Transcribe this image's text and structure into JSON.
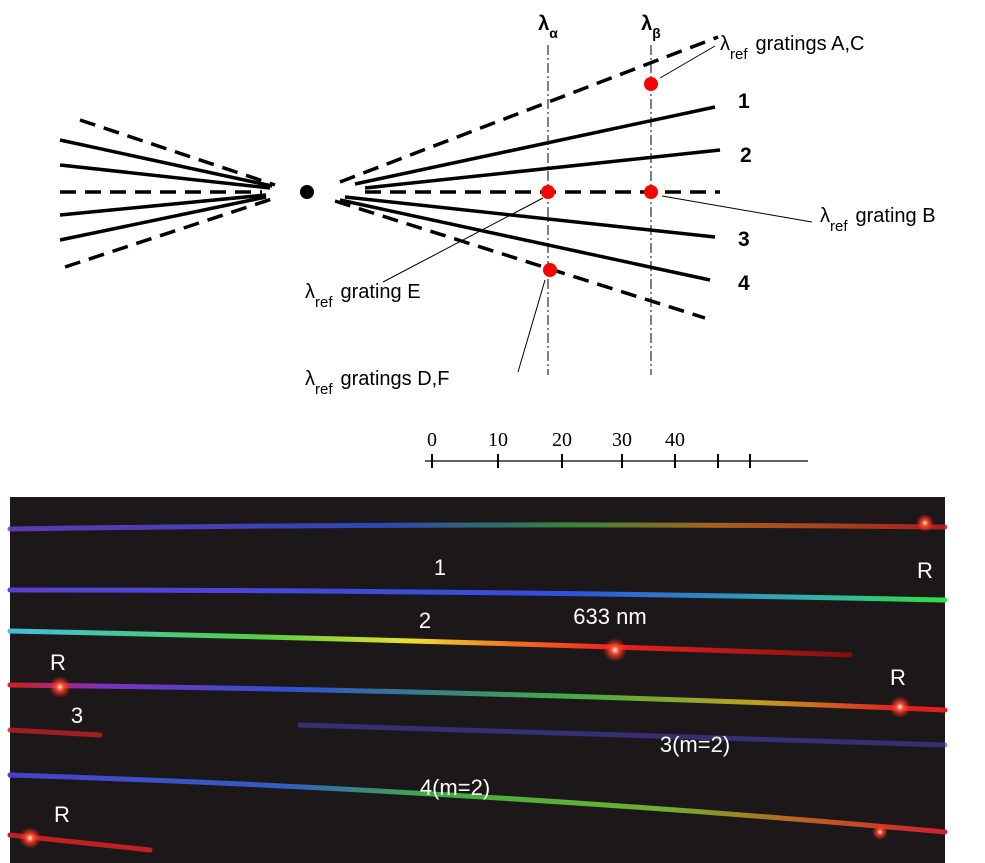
{
  "diagram": {
    "lambda_alpha": {
      "symbol": "λ",
      "subscript": "α"
    },
    "lambda_beta": {
      "symbol": "λ",
      "subscript": "β"
    },
    "line_labels": [
      "1",
      "2",
      "3",
      "4"
    ],
    "annotations": [
      {
        "symbol": "λ",
        "subscript": "ref",
        "text": "gratings A,C"
      },
      {
        "symbol": "λ",
        "subscript": "ref",
        "text": "grating B"
      },
      {
        "symbol": "λ",
        "subscript": "ref",
        "text": "grating E"
      },
      {
        "symbol": "λ",
        "subscript": "ref",
        "text": "gratings D,F"
      }
    ],
    "scale": {
      "labels": [
        0,
        10,
        20,
        30,
        40
      ]
    }
  },
  "photo": {
    "labels": [
      "R",
      "1",
      "2",
      "633 nm",
      "R",
      "R",
      "3",
      "3(m=2)",
      "4(m=2)",
      "R"
    ]
  }
}
